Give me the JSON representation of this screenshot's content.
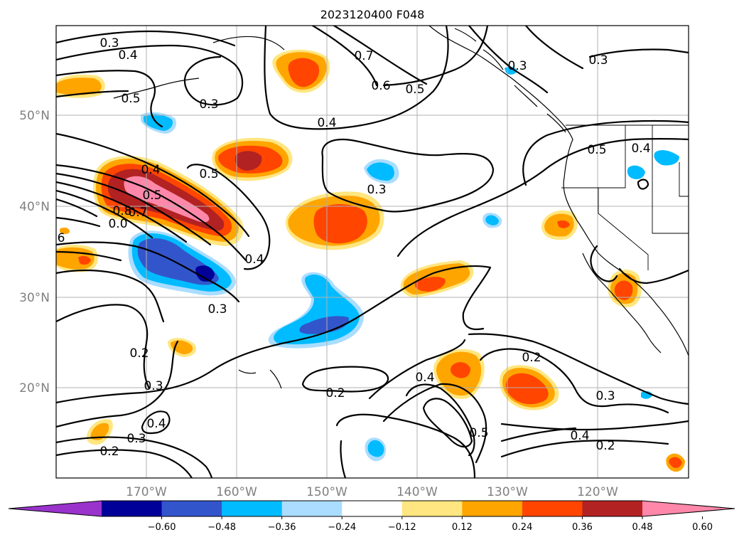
{
  "title": "2023120400 F048",
  "lon_ticks": [
    "170°W",
    "160°W",
    "150°W",
    "140°W",
    "130°W",
    "120°W"
  ],
  "lat_ticks": [
    "50°N",
    "40°N",
    "30°N",
    "20°N"
  ],
  "colorbar": {
    "colors": [
      "#9933cc",
      "#000099",
      "#3355cc",
      "#00bbff",
      "#aaddff",
      "#ffffff",
      "#ffe680",
      "#ffa500",
      "#ff4500",
      "#b22222",
      "#ff88aa"
    ],
    "tick_labels": [
      "−0.60",
      "−0.48",
      "−0.36",
      "−0.24",
      "−0.12",
      "0.12",
      "0.24",
      "0.36",
      "0.48",
      "0.60"
    ]
  },
  "contour_labels": [
    "0.3",
    "0.4",
    "0.5",
    "0.3",
    "0.7",
    "0.6",
    "0.5",
    "0.3",
    "0.3",
    "0.4",
    "0.5",
    "0.4",
    "0.5",
    "0.3",
    "0.4",
    "0.5",
    "0.7",
    "0.8",
    "0.0",
    "6",
    "0.4",
    "0.3",
    "0.2",
    "0.3",
    "0.4",
    "0.3",
    "0.2",
    "0.2",
    "0.4",
    "0.2",
    "0.5",
    "0.3",
    "0.4",
    "0.2"
  ]
}
